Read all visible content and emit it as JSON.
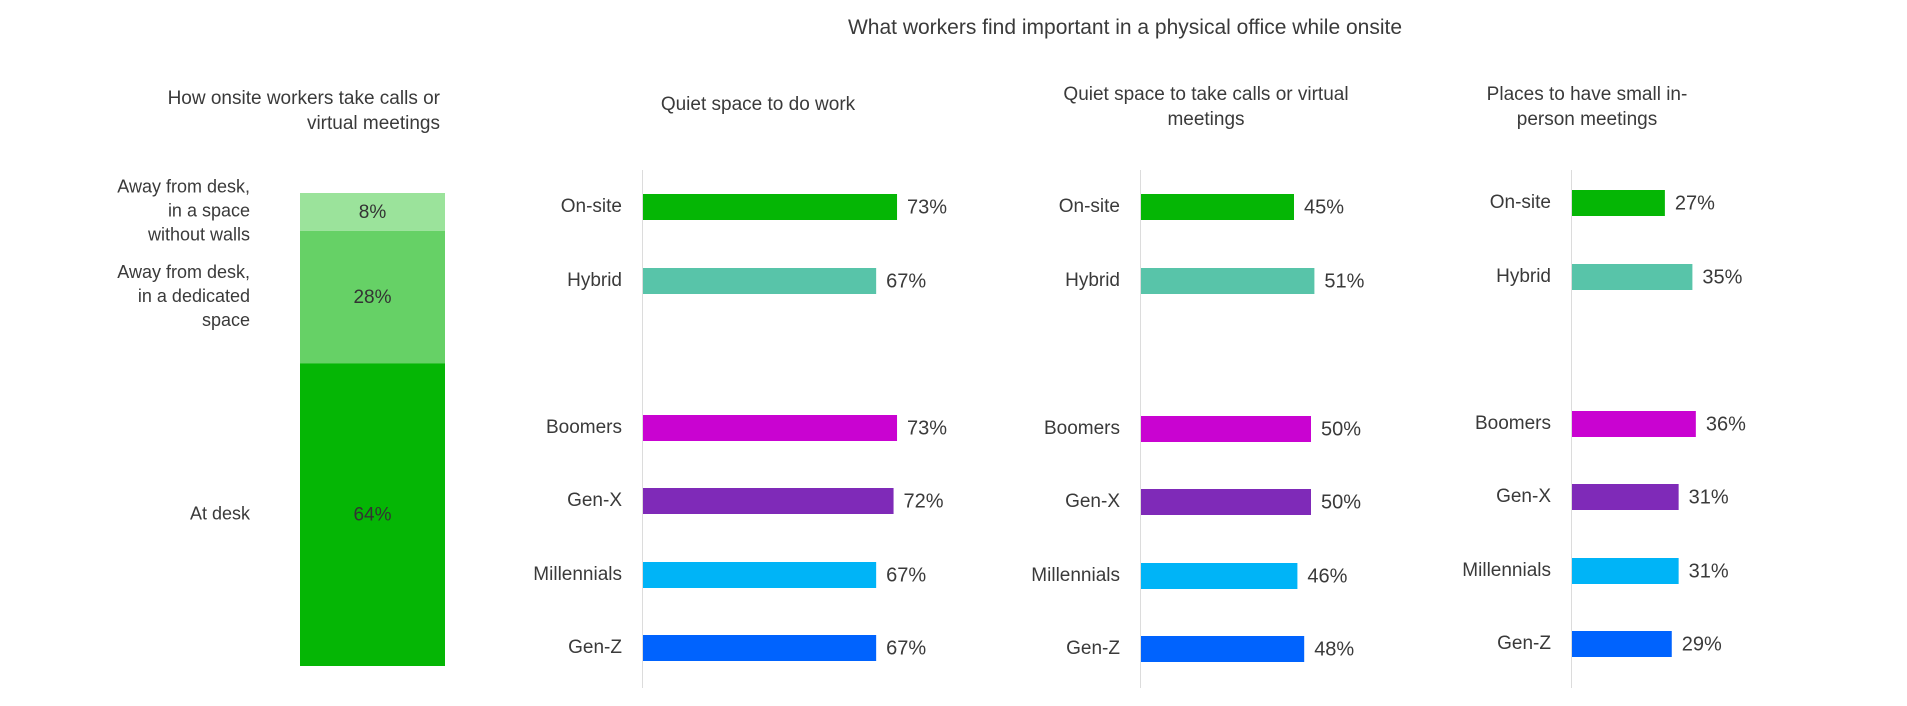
{
  "chart_data": {
    "title": "What workers find important in a physical office while onsite",
    "stacked": {
      "type": "bar",
      "title": "How onsite workers take calls or virtual meetings",
      "segments": [
        {
          "label": "Away from desk, in a space without walls",
          "value": 8,
          "value_label": "8%",
          "color": "#9be39b"
        },
        {
          "label": "Away from desk, in a dedicated space",
          "value": 28,
          "value_label": "28%",
          "color": "#66d166"
        },
        {
          "label": "At desk",
          "value": 64,
          "value_label": "64%",
          "color": "#05b605"
        }
      ]
    },
    "panels": [
      {
        "type": "bar",
        "title": "Quiet space to do work",
        "categories": [
          "On-site",
          "Hybrid",
          "Boomers",
          "Gen-X",
          "Millennials",
          "Gen-Z"
        ],
        "values": [
          73,
          67,
          73,
          72,
          67,
          67
        ],
        "value_labels": [
          "73%",
          "67%",
          "73%",
          "72%",
          "67%",
          "67%"
        ]
      },
      {
        "type": "bar",
        "title": "Quiet space to take calls or virtual meetings",
        "categories": [
          "On-site",
          "Hybrid",
          "Boomers",
          "Gen-X",
          "Millennials",
          "Gen-Z"
        ],
        "values": [
          45,
          51,
          50,
          50,
          46,
          48
        ],
        "value_labels": [
          "45%",
          "51%",
          "50%",
          "50%",
          "46%",
          "48%"
        ]
      },
      {
        "type": "bar",
        "title": "Places to have small in-person meetings",
        "categories": [
          "On-site",
          "Hybrid",
          "Boomers",
          "Gen-X",
          "Millennials",
          "Gen-Z"
        ],
        "values": [
          27,
          35,
          36,
          31,
          31,
          29
        ],
        "value_labels": [
          "27%",
          "35%",
          "36%",
          "31%",
          "31%",
          "29%"
        ]
      }
    ],
    "category_colors": [
      "#05b605",
      "#58c4a9",
      "#c903d1",
      "#7f2ab8",
      "#00b4f7",
      "#0063fe"
    ],
    "gridlines": false,
    "legend": "none"
  }
}
